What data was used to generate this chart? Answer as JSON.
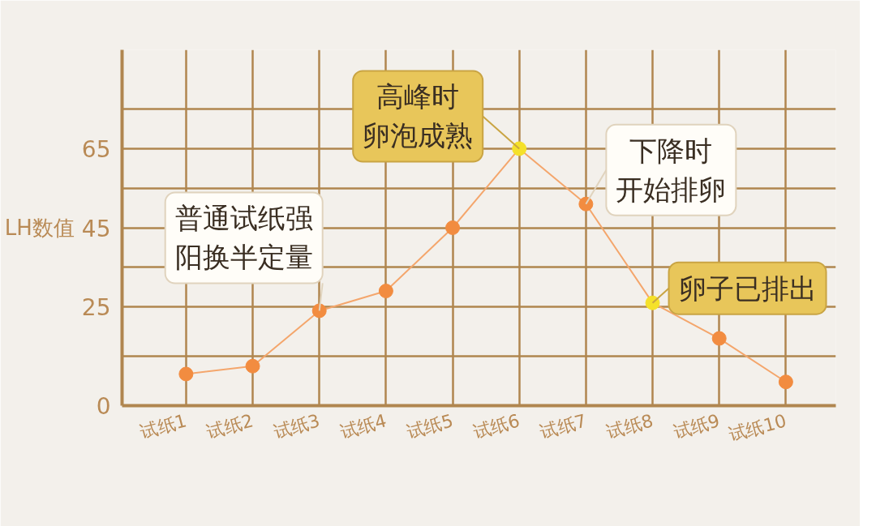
{
  "chart_data": {
    "type": "line",
    "ylabel": "LH数值",
    "categories": [
      "试纸1",
      "试纸2",
      "试纸3",
      "试纸4",
      "试纸5",
      "试纸6",
      "试纸7",
      "试纸8",
      "试纸9",
      "试纸10"
    ],
    "series": [
      {
        "color": "#f4a66c",
        "colors": [
          "#f28c40",
          "#f28c40",
          "#f28c40",
          "#f28c40",
          "#f28c40",
          "#f5e12a",
          "#f28c40",
          "#f5e12a",
          "#f28c40",
          "#f28c40"
        ],
        "values": [
          8,
          10,
          24,
          29,
          45,
          65,
          51,
          26,
          17,
          6
        ]
      }
    ],
    "ylim": [
      0,
      90
    ],
    "yticks": [
      0,
      {
        "value": 12.5,
        "label": null
      },
      25,
      {
        "value": 35,
        "label": null
      },
      45,
      {
        "value": 55,
        "label": null
      },
      65,
      {
        "value": 75,
        "label": null
      }
    ],
    "grid": true,
    "marker": "circle",
    "line_style": "solid",
    "annotations": [
      {
        "text": "普通试纸强阳换半定量",
        "x": "试纸3",
        "y": 24
      },
      {
        "text": "高峰时卵泡成熟",
        "x": "试纸6",
        "y": 65
      },
      {
        "text": "下降时开始排卵",
        "x": "试纸7",
        "y": 51
      },
      {
        "text": "卵子已排出",
        "x": "试纸8",
        "y": 26
      }
    ]
  }
}
